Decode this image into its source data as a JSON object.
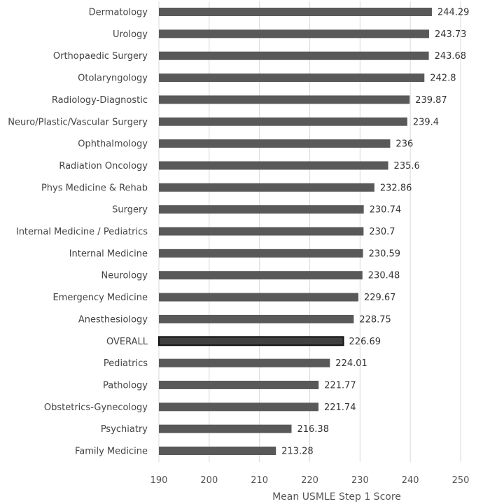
{
  "chart_data": {
    "type": "bar",
    "orientation": "horizontal",
    "categories": [
      "Dermatology",
      "Urology",
      "Orthopaedic Surgery",
      "Otolaryngology",
      "Radiology-Diagnostic",
      "Neuro/Plastic/Vascular Surgery",
      "Ophthalmology",
      "Radiation Oncology",
      "Phys Medicine & Rehab",
      "Surgery",
      "Internal Medicine / Pediatrics",
      "Internal Medicine",
      "Neurology",
      "Emergency Medicine",
      "Anesthesiology",
      "OVERALL",
      "Pediatrics",
      "Pathology",
      "Obstetrics-Gynecology",
      "Psychiatry",
      "Family Medicine"
    ],
    "values": [
      244.29,
      243.73,
      243.68,
      242.8,
      239.87,
      239.4,
      236,
      235.6,
      232.86,
      230.74,
      230.7,
      230.59,
      230.48,
      229.67,
      228.75,
      226.69,
      224.01,
      221.77,
      221.74,
      216.38,
      213.28
    ],
    "value_labels": [
      "244.29",
      "243.73",
      "243.68",
      "242.8",
      "239.87",
      "239.4",
      "236",
      "235.6",
      "232.86",
      "230.74",
      "230.7",
      "230.59",
      "230.48",
      "229.67",
      "228.75",
      "226.69",
      "224.01",
      "221.77",
      "221.74",
      "216.38",
      "213.28"
    ],
    "highlighted_category": "OVERALL",
    "xlabel": "Mean USMLE Step 1 Score",
    "xlim": [
      190,
      250
    ],
    "xticks": [
      190,
      200,
      210,
      220,
      230,
      240,
      250
    ],
    "xtick_labels": [
      "190",
      "200",
      "210",
      "220",
      "230",
      "240",
      "250"
    ],
    "grid": "vertical",
    "legend": "none",
    "colors": {
      "bar": "#595959",
      "highlight_fill": "#404040",
      "highlight_border": "#111111",
      "grid": "#d9d9d9"
    }
  }
}
